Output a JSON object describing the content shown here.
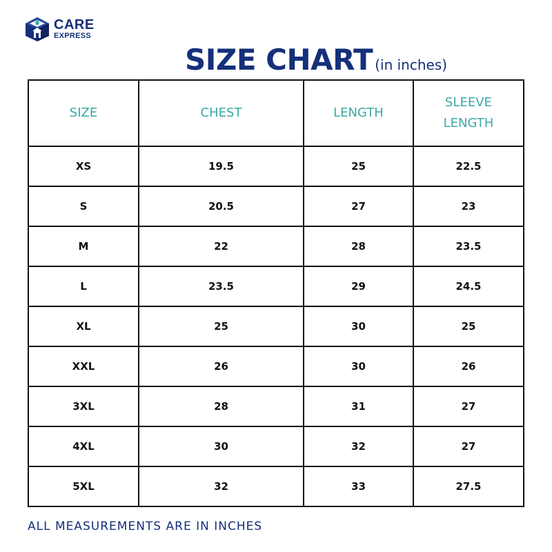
{
  "brand": {
    "name_line1": "CARE",
    "name_line2": "EXPRESS",
    "icon": "house-box-logo-icon",
    "color": "#15307a"
  },
  "title": {
    "main": "SIZE CHART",
    "sub": "(in inches)"
  },
  "table": {
    "header_color": "#3aa9a4",
    "headers": [
      "SIZE",
      "CHEST",
      "LENGTH",
      "SLEEVE LENGTH"
    ],
    "rows": [
      [
        "XS",
        "19.5",
        "25",
        "22.5"
      ],
      [
        "S",
        "20.5",
        "27",
        "23"
      ],
      [
        "M",
        "22",
        "28",
        "23.5"
      ],
      [
        "L",
        "23.5",
        "29",
        "24.5"
      ],
      [
        "XL",
        "25",
        "30",
        "25"
      ],
      [
        "XXL",
        "26",
        "30",
        "26"
      ],
      [
        "3XL",
        "28",
        "31",
        "27"
      ],
      [
        "4XL",
        "30",
        "32",
        "27"
      ],
      [
        "5XL",
        "32",
        "33",
        "27.5"
      ]
    ]
  },
  "footer": "ALL MEASUREMENTS ARE IN INCHES"
}
